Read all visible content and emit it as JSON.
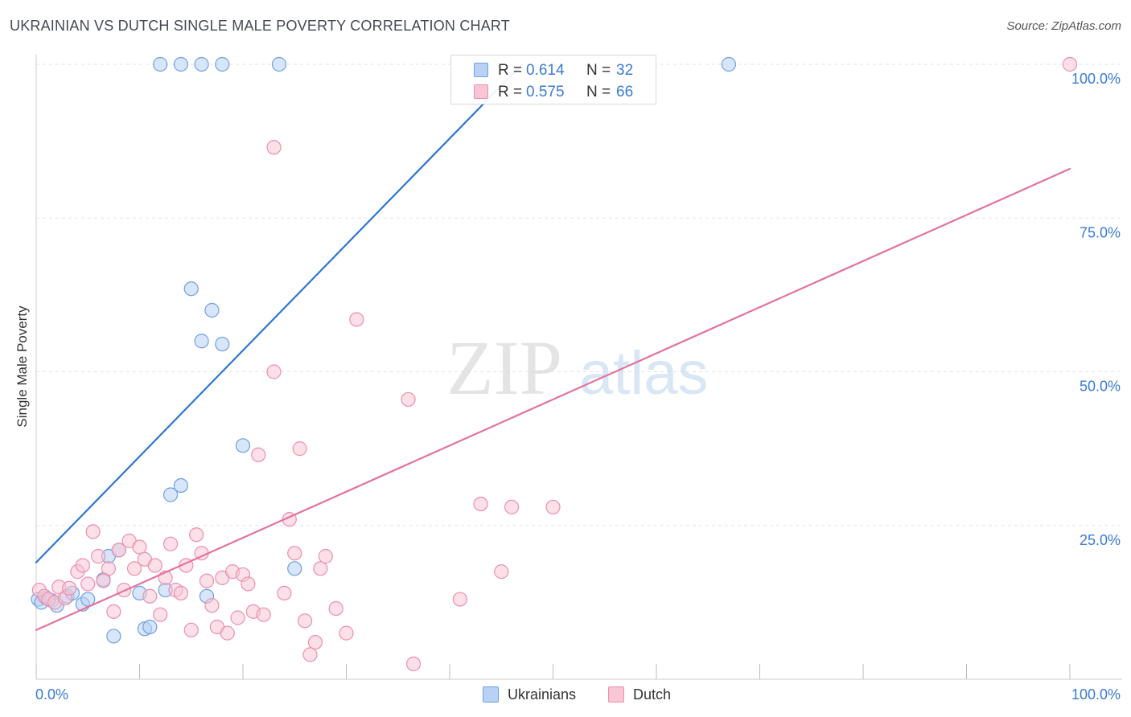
{
  "header": {
    "title": "UKRAINIAN VS DUTCH SINGLE MALE POVERTY CORRELATION CHART",
    "source": "Source: ZipAtlas.com"
  },
  "watermark": {
    "zip": "ZIP",
    "atlas": "atlas"
  },
  "colors": {
    "ukrainians_fill": "#b8d2f5",
    "ukrainians_stroke": "#6f9fe0",
    "ukrainians_line": "#2e76d1",
    "dutch_fill": "#f8c6d5",
    "dutch_stroke": "#ec8fad",
    "dutch_line": "#e3739b",
    "value_text": "#3a7bd5",
    "grid": "#e2e2e2"
  },
  "legend_top": {
    "rows": [
      {
        "r_label": "R =",
        "r_value": "0.614",
        "n_label": "N =",
        "n_value": "32"
      },
      {
        "r_label": "R =",
        "r_value": "0.575",
        "n_label": "N =",
        "n_value": "66"
      }
    ]
  },
  "legend_bottom": {
    "items": [
      "Ukrainians",
      "Dutch"
    ]
  },
  "chart_data": {
    "type": "scatter",
    "title": "UKRAINIAN VS DUTCH SINGLE MALE POVERTY CORRELATION CHART",
    "xlabel": "",
    "ylabel": "Single Male Poverty",
    "xlim": [
      0,
      100
    ],
    "ylim": [
      0,
      100
    ],
    "x_tick_labels": [
      {
        "value": 0,
        "label": "0.0%"
      },
      {
        "value": 100,
        "label": "100.0%"
      }
    ],
    "y_tick_labels": [
      {
        "value": 25,
        "label": "25.0%"
      },
      {
        "value": 50,
        "label": "50.0%"
      },
      {
        "value": 75,
        "label": "75.0%"
      },
      {
        "value": 100,
        "label": "100.0%"
      }
    ],
    "grid": true,
    "legend_position": "bottom-center",
    "series": [
      {
        "name": "Ukrainians",
        "r": 0.614,
        "n": 32,
        "trend": {
          "x0": 0,
          "y0": 19,
          "x1": 47,
          "y1": 100
        },
        "points": [
          [
            0.2,
            13.0
          ],
          [
            0.5,
            12.5
          ],
          [
            1.0,
            13.2
          ],
          [
            1.5,
            12.8
          ],
          [
            2.0,
            12.0
          ],
          [
            3.0,
            13.5
          ],
          [
            3.5,
            14.0
          ],
          [
            4.5,
            12.2
          ],
          [
            5.0,
            13.0
          ],
          [
            6.5,
            16.2
          ],
          [
            7.0,
            20.0
          ],
          [
            7.5,
            7.0
          ],
          [
            8.0,
            21.0
          ],
          [
            10.0,
            14.0
          ],
          [
            10.5,
            8.2
          ],
          [
            11.0,
            8.5
          ],
          [
            12.5,
            14.5
          ],
          [
            13.0,
            30.0
          ],
          [
            14.0,
            31.5
          ],
          [
            15.0,
            63.5
          ],
          [
            16.0,
            55.0
          ],
          [
            16.5,
            13.5
          ],
          [
            17.0,
            60.0
          ],
          [
            18.0,
            54.5
          ],
          [
            20.0,
            38.0
          ],
          [
            25.0,
            18.0
          ],
          [
            12.0,
            100.0
          ],
          [
            14.0,
            100.0
          ],
          [
            16.0,
            100.0
          ],
          [
            18.0,
            100.0
          ],
          [
            23.5,
            100.0
          ],
          [
            67.0,
            100.0
          ]
        ]
      },
      {
        "name": "Dutch",
        "r": 0.575,
        "n": 66,
        "trend": {
          "x0": 0,
          "y0": 8,
          "x1": 100,
          "y1": 83
        },
        "points": [
          [
            0.3,
            14.5
          ],
          [
            0.8,
            13.5
          ],
          [
            1.2,
            13.0
          ],
          [
            1.8,
            12.5
          ],
          [
            2.2,
            15.0
          ],
          [
            2.8,
            13.2
          ],
          [
            3.2,
            14.8
          ],
          [
            4.0,
            17.5
          ],
          [
            4.5,
            18.5
          ],
          [
            5.0,
            15.5
          ],
          [
            5.5,
            24.0
          ],
          [
            6.0,
            20.0
          ],
          [
            6.5,
            16.0
          ],
          [
            7.0,
            18.0
          ],
          [
            7.5,
            11.0
          ],
          [
            8.0,
            21.0
          ],
          [
            8.5,
            14.5
          ],
          [
            9.0,
            22.5
          ],
          [
            9.5,
            18.0
          ],
          [
            10.0,
            21.5
          ],
          [
            10.5,
            19.5
          ],
          [
            11.0,
            13.5
          ],
          [
            11.5,
            18.5
          ],
          [
            12.0,
            10.5
          ],
          [
            12.5,
            16.5
          ],
          [
            13.0,
            22.0
          ],
          [
            13.5,
            14.5
          ],
          [
            14.0,
            14.0
          ],
          [
            14.5,
            18.5
          ],
          [
            15.0,
            8.0
          ],
          [
            15.5,
            23.5
          ],
          [
            16.0,
            20.5
          ],
          [
            16.5,
            16.0
          ],
          [
            17.0,
            12.0
          ],
          [
            17.5,
            8.5
          ],
          [
            18.0,
            16.5
          ],
          [
            18.5,
            7.5
          ],
          [
            19.0,
            17.5
          ],
          [
            19.5,
            10.0
          ],
          [
            20.0,
            17.0
          ],
          [
            20.5,
            15.5
          ],
          [
            21.0,
            11.0
          ],
          [
            21.5,
            36.5
          ],
          [
            22.0,
            10.5
          ],
          [
            23.0,
            50.0
          ],
          [
            24.0,
            14.0
          ],
          [
            24.5,
            26.0
          ],
          [
            25.0,
            20.5
          ],
          [
            25.5,
            37.5
          ],
          [
            26.0,
            9.5
          ],
          [
            26.5,
            4.0
          ],
          [
            27.0,
            6.0
          ],
          [
            27.5,
            18.0
          ],
          [
            28.0,
            20.0
          ],
          [
            29.0,
            11.5
          ],
          [
            30.0,
            7.5
          ],
          [
            31.0,
            58.5
          ],
          [
            23.0,
            86.5
          ],
          [
            36.0,
            45.5
          ],
          [
            36.5,
            2.5
          ],
          [
            41.0,
            13.0
          ],
          [
            43.0,
            28.5
          ],
          [
            45.0,
            17.5
          ],
          [
            46.0,
            28.0
          ],
          [
            50.0,
            28.0
          ],
          [
            100.0,
            100.0
          ]
        ]
      }
    ]
  }
}
